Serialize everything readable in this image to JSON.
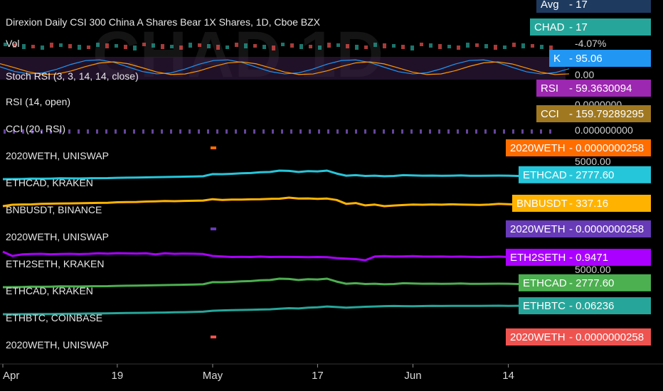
{
  "header": {
    "title": "Direxion Daily CSI 300 China A Shares Bear 1X Shares, 1D, Cboe BZX"
  },
  "watermark": "CHAD 1D",
  "top_tags": [
    {
      "name": "Avg",
      "value": "17",
      "color": "#1e3a5f",
      "text_color": "#ffffff"
    },
    {
      "name": "CHAD",
      "value": "17",
      "sub": "-4.07%",
      "color": "#26a69a",
      "text_color": "#ffffff"
    },
    {
      "name": "K",
      "value": "95.06",
      "sub": "0.00",
      "color": "#2196f3",
      "text_color": "#ffffff"
    },
    {
      "name": "RSI",
      "value": "59.3630094",
      "sub": "0.0000000",
      "color": "#9c27b0",
      "text_color": "#ffffff"
    },
    {
      "name": "CCI",
      "value": "159.79289295",
      "sub": "0.000000000",
      "color": "#a07820",
      "text_color": "#ffffff"
    }
  ],
  "panes": [
    {
      "label": "Vol"
    },
    {
      "label": "Stoch RSI (3, 3, 14, 14, close)"
    },
    {
      "label": "RSI (14, open)"
    },
    {
      "label": "CCI (20, RSI)"
    }
  ],
  "chart_data": {
    "type": "line",
    "x_axis": {
      "ticks": [
        "Apr",
        "19",
        "May",
        "17",
        "Jun",
        "14"
      ],
      "tick_index": [
        0,
        12,
        22,
        33,
        43,
        53
      ]
    },
    "series": [
      {
        "name": "2020WETH, UNISWAP",
        "tag": "2020WETH",
        "value_label": "0.0000000258",
        "color": "#ff6d00",
        "marker_only": true,
        "marker_index": 22,
        "sub_label": "",
        "values": []
      },
      {
        "name": "ETHCAD, KRAKEN",
        "tag": "ETHCAD",
        "value_label": "2777.60",
        "color": "#26c6da",
        "sub_label": "5000.00",
        "values": [
          1950,
          1960,
          1990,
          2040,
          2030,
          2060,
          2110,
          2090,
          2080,
          2120,
          2140,
          2150,
          2200,
          2230,
          2260,
          2280,
          2320,
          2350,
          2380,
          2420,
          2450,
          2500,
          2900,
          2880,
          2950,
          3050,
          3100,
          3250,
          3300,
          3550,
          3500,
          3300,
          3450,
          3400,
          3550,
          3000,
          2600,
          2700,
          2550,
          2600,
          2500,
          2550,
          2700,
          2650,
          2600,
          2620,
          2580,
          2610,
          2650,
          2590,
          2580,
          2600,
          2620,
          2610,
          2550,
          2580,
          2640,
          2650,
          2700,
          2777.6
        ]
      },
      {
        "name": "BNBUSDT, BINANCE",
        "tag": "BNBUSDT",
        "value_label": "337.16",
        "color": "#ffb300",
        "sub_label": "",
        "values": [
          300,
          318,
          322,
          323,
          330,
          332,
          334,
          336,
          338,
          340,
          342,
          344,
          350,
          352,
          354,
          360,
          362,
          366,
          364,
          368,
          370,
          372,
          390,
          380,
          385,
          384,
          388,
          390,
          394,
          396,
          410,
          398,
          400,
          394,
          398,
          380,
          330,
          340,
          310,
          320,
          300,
          308,
          315,
          320,
          318,
          322,
          319,
          324,
          320,
          318,
          316,
          320,
          330,
          326,
          320,
          322,
          318,
          330,
          334,
          337.16
        ]
      },
      {
        "name": "2020WETH, UNISWAP",
        "tag": "2020WETH",
        "value_label": "0.0000000258",
        "color": "#673ab7",
        "marker_only": true,
        "marker_index": 22,
        "sub_label": "",
        "values": []
      },
      {
        "name": "ETH2SETH, KRAKEN",
        "tag": "ETH2SETH",
        "value_label": "0.9471",
        "color": "#aa00ff",
        "sub_label": "",
        "values": [
          1.0,
          0.96,
          0.975,
          0.978,
          0.98,
          0.976,
          0.978,
          0.98,
          0.977,
          0.98,
          0.985,
          0.982,
          0.986,
          0.984,
          0.983,
          0.985,
          0.975,
          0.985,
          0.98,
          0.982,
          0.981,
          0.978,
          0.96,
          0.955,
          0.95,
          0.952,
          0.95,
          0.954,
          0.95,
          0.952,
          0.951,
          0.95,
          0.948,
          0.95,
          0.948,
          0.94,
          0.935,
          0.93,
          0.92,
          0.955,
          0.958,
          0.955,
          0.956,
          0.958,
          0.955,
          0.954,
          0.955,
          0.953,
          0.954,
          0.952,
          0.95,
          0.952,
          0.954,
          0.95,
          0.946,
          0.95,
          0.948,
          0.947,
          0.948,
          0.9471
        ]
      },
      {
        "name": "ETHCAD, KRAKEN",
        "tag": "ETHCAD",
        "value_label": "2777.60",
        "color": "#4caf50",
        "sub_label": "5000.00",
        "values": [
          1950,
          1960,
          1990,
          2040,
          2030,
          2060,
          2110,
          2090,
          2080,
          2120,
          2140,
          2150,
          2200,
          2230,
          2260,
          2280,
          2320,
          2350,
          2380,
          2420,
          2450,
          2500,
          2900,
          2880,
          2950,
          3050,
          3100,
          3250,
          3300,
          3550,
          3500,
          3300,
          3450,
          3400,
          3550,
          3000,
          2600,
          2700,
          2550,
          2600,
          2500,
          2550,
          2700,
          2650,
          2600,
          2620,
          2580,
          2610,
          2650,
          2590,
          2580,
          2600,
          2620,
          2610,
          2550,
          2580,
          2640,
          2650,
          2700,
          2777.6
        ]
      },
      {
        "name": "ETHBTC, COINBASE",
        "tag": "ETHBTC",
        "value_label": "0.06236",
        "color": "#26a69a",
        "sub_label": "",
        "values": [
          0.033,
          0.0331,
          0.0332,
          0.0334,
          0.0336,
          0.0338,
          0.0342,
          0.0346,
          0.035,
          0.0354,
          0.0358,
          0.0362,
          0.0368,
          0.0372,
          0.0376,
          0.038,
          0.0384,
          0.039,
          0.0396,
          0.0402,
          0.041,
          0.0418,
          0.045,
          0.0462,
          0.047,
          0.0478,
          0.0486,
          0.0492,
          0.05,
          0.052,
          0.054,
          0.053,
          0.056,
          0.057,
          0.06,
          0.058,
          0.056,
          0.0575,
          0.059,
          0.06,
          0.061,
          0.0615,
          0.0612,
          0.0608,
          0.0614,
          0.0618,
          0.0616,
          0.062,
          0.0618,
          0.0622,
          0.062,
          0.0624,
          0.0626,
          0.0622,
          0.0624,
          0.0625,
          0.0623,
          0.0622,
          0.0624,
          0.06236
        ]
      },
      {
        "name": "2020WETH, UNISWAP",
        "tag": "2020WETH",
        "value_label": "0.0000000258",
        "color": "#ef5350",
        "marker_only": true,
        "marker_index": 22,
        "sub_label": "",
        "values": []
      }
    ],
    "legend": "left, per pane",
    "grid": false
  }
}
